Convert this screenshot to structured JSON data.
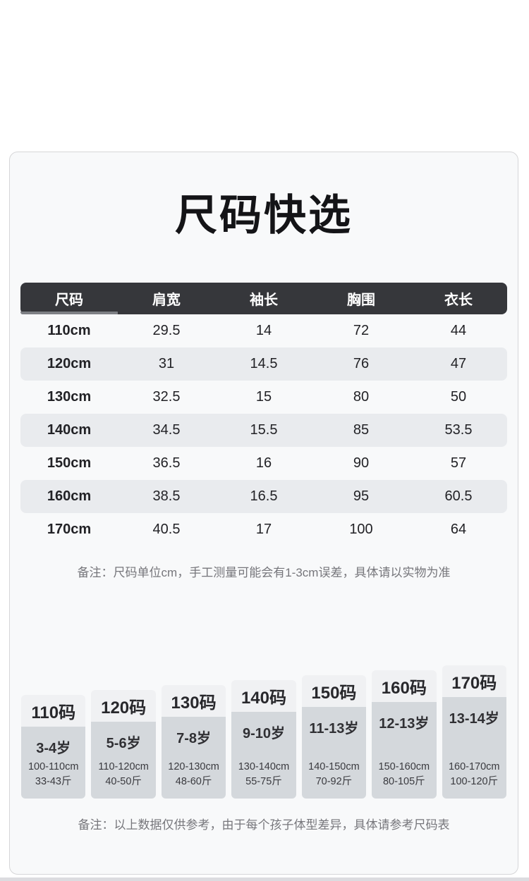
{
  "page": {
    "title": "尺码快选",
    "note1": "备注：尺码单位cm，手工测量可能会有1-3cm误差，具体请以实物为准",
    "note2": "备注：以上数据仅供参考，由于每个孩子体型差异，具体请参考尺码表"
  },
  "size_table": {
    "headers": [
      "尺码",
      "肩宽",
      "袖长",
      "胸围",
      "衣长"
    ],
    "rows": [
      {
        "size": "110cm",
        "shoulder": "29.5",
        "sleeve": "14",
        "chest": "72",
        "length": "44"
      },
      {
        "size": "120cm",
        "shoulder": "31",
        "sleeve": "14.5",
        "chest": "76",
        "length": "47"
      },
      {
        "size": "130cm",
        "shoulder": "32.5",
        "sleeve": "15",
        "chest": "80",
        "length": "50"
      },
      {
        "size": "140cm",
        "shoulder": "34.5",
        "sleeve": "15.5",
        "chest": "85",
        "length": "53.5"
      },
      {
        "size": "150cm",
        "shoulder": "36.5",
        "sleeve": "16",
        "chest": "90",
        "length": "57"
      },
      {
        "size": "160cm",
        "shoulder": "38.5",
        "sleeve": "16.5",
        "chest": "95",
        "length": "60.5"
      },
      {
        "size": "170cm",
        "shoulder": "40.5",
        "sleeve": "17",
        "chest": "100",
        "length": "64"
      }
    ]
  },
  "size_cards": [
    {
      "label": "110码",
      "age": "3-4岁",
      "height": "100-110cm",
      "weight": "33-43斤"
    },
    {
      "label": "120码",
      "age": "5-6岁",
      "height": "110-120cm",
      "weight": "40-50斤"
    },
    {
      "label": "130码",
      "age": "7-8岁",
      "height": "120-130cm",
      "weight": "48-60斤"
    },
    {
      "label": "140码",
      "age": "9-10岁",
      "height": "130-140cm",
      "weight": "55-75斤"
    },
    {
      "label": "150码",
      "age": "11-13岁",
      "height": "140-150cm",
      "weight": "70-92斤"
    },
    {
      "label": "160码",
      "age": "12-13岁",
      "height": "150-160cm",
      "weight": "80-105斤"
    },
    {
      "label": "170码",
      "age": "13-14岁",
      "height": "160-170cm",
      "weight": "100-120斤"
    }
  ],
  "colors": {
    "table_header_bg": "#36373b",
    "table_stripe": "#e9ebee",
    "card_bg": "#f8f9fa",
    "card_border": "#d6d6d8",
    "size_card_head_bg": "#f0f1f3",
    "size_card_body_bg": "#d4d8dc",
    "note_text": "#76767b",
    "scroll_thumb": "#7e8085"
  }
}
